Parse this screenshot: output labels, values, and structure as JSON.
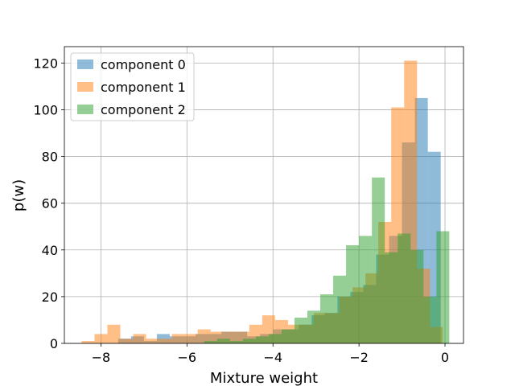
{
  "chart_data": {
    "type": "histogram",
    "title": "",
    "xlabel": "Mixture weight",
    "ylabel": "p(w)",
    "xlim": [
      -8.85,
      0.43
    ],
    "ylim": [
      0,
      127
    ],
    "xticks": [
      -8,
      -6,
      -4,
      -2,
      0
    ],
    "xtick_labels": [
      "−8",
      "−6",
      "−4",
      "−2",
      "0"
    ],
    "yticks": [
      0,
      20,
      40,
      60,
      80,
      100,
      120
    ],
    "ytick_labels": [
      "0",
      "20",
      "40",
      "60",
      "80",
      "100",
      "120"
    ],
    "grid": true,
    "legend_position": "upper left",
    "series": [
      {
        "name": "component 0",
        "color": "#1f77b4",
        "opacity": 0.5,
        "bins": [
          [
            -7.6,
            -7.3,
            2
          ],
          [
            -7.3,
            -7.0,
            3
          ],
          [
            -7.0,
            -6.7,
            1
          ],
          [
            -6.7,
            -6.4,
            4
          ],
          [
            -6.4,
            -6.1,
            3
          ],
          [
            -6.1,
            -5.8,
            3
          ],
          [
            -5.8,
            -5.5,
            4
          ],
          [
            -5.5,
            -5.2,
            4
          ],
          [
            -5.2,
            -4.9,
            5
          ],
          [
            -4.9,
            -4.6,
            5
          ],
          [
            -4.6,
            -4.3,
            3
          ],
          [
            -4.3,
            -4.0,
            4
          ],
          [
            -4.0,
            -3.7,
            6
          ],
          [
            -3.7,
            -3.4,
            6
          ],
          [
            -3.4,
            -3.1,
            8
          ],
          [
            -3.1,
            -2.8,
            12
          ],
          [
            -2.8,
            -2.5,
            13
          ],
          [
            -2.5,
            -2.2,
            20
          ],
          [
            -2.2,
            -1.9,
            22
          ],
          [
            -1.9,
            -1.6,
            25
          ],
          [
            -1.6,
            -1.3,
            38
          ],
          [
            -1.3,
            -1.0,
            46
          ],
          [
            -1.0,
            -0.7,
            86
          ],
          [
            -0.7,
            -0.4,
            105
          ],
          [
            -0.4,
            -0.1,
            82
          ]
        ]
      },
      {
        "name": "component 1",
        "color": "#ff7f0e",
        "opacity": 0.5,
        "bins": [
          [
            -8.45,
            -8.15,
            1
          ],
          [
            -8.15,
            -7.85,
            4
          ],
          [
            -7.85,
            -7.55,
            8
          ],
          [
            -7.55,
            -7.25,
            2
          ],
          [
            -7.25,
            -6.95,
            4
          ],
          [
            -6.95,
            -6.65,
            2
          ],
          [
            -6.65,
            -6.35,
            2
          ],
          [
            -6.35,
            -6.05,
            4
          ],
          [
            -6.05,
            -5.75,
            4
          ],
          [
            -5.75,
            -5.45,
            6
          ],
          [
            -5.45,
            -5.15,
            5
          ],
          [
            -5.15,
            -4.85,
            5
          ],
          [
            -4.85,
            -4.55,
            5
          ],
          [
            -4.55,
            -4.25,
            8
          ],
          [
            -4.25,
            -3.95,
            12
          ],
          [
            -3.95,
            -3.65,
            10
          ],
          [
            -3.65,
            -3.35,
            8
          ],
          [
            -3.35,
            -3.05,
            8
          ],
          [
            -3.05,
            -2.75,
            13
          ],
          [
            -2.75,
            -2.45,
            13
          ],
          [
            -2.45,
            -2.15,
            20
          ],
          [
            -2.15,
            -1.85,
            24
          ],
          [
            -1.85,
            -1.55,
            30
          ],
          [
            -1.55,
            -1.25,
            52
          ],
          [
            -1.25,
            -0.95,
            101
          ],
          [
            -0.95,
            -0.65,
            121
          ],
          [
            -0.65,
            -0.35,
            32
          ],
          [
            -0.35,
            -0.05,
            7
          ]
        ]
      },
      {
        "name": "component 2",
        "color": "#2ca02c",
        "opacity": 0.5,
        "bins": [
          [
            -5.6,
            -5.3,
            1
          ],
          [
            -5.3,
            -5.0,
            2
          ],
          [
            -5.0,
            -4.7,
            1
          ],
          [
            -4.7,
            -4.4,
            2
          ],
          [
            -4.4,
            -4.1,
            3
          ],
          [
            -4.1,
            -3.8,
            4
          ],
          [
            -3.8,
            -3.5,
            6
          ],
          [
            -3.5,
            -3.2,
            11
          ],
          [
            -3.2,
            -2.9,
            14
          ],
          [
            -2.9,
            -2.6,
            21
          ],
          [
            -2.6,
            -2.3,
            29
          ],
          [
            -2.3,
            -2.0,
            42
          ],
          [
            -2.0,
            -1.7,
            46
          ],
          [
            -1.7,
            -1.4,
            71
          ],
          [
            -1.4,
            -1.1,
            39
          ],
          [
            -1.1,
            -0.8,
            47
          ],
          [
            -0.8,
            -0.5,
            40
          ],
          [
            -0.5,
            -0.2,
            20
          ],
          [
            -0.2,
            0.1,
            48
          ]
        ]
      }
    ]
  }
}
